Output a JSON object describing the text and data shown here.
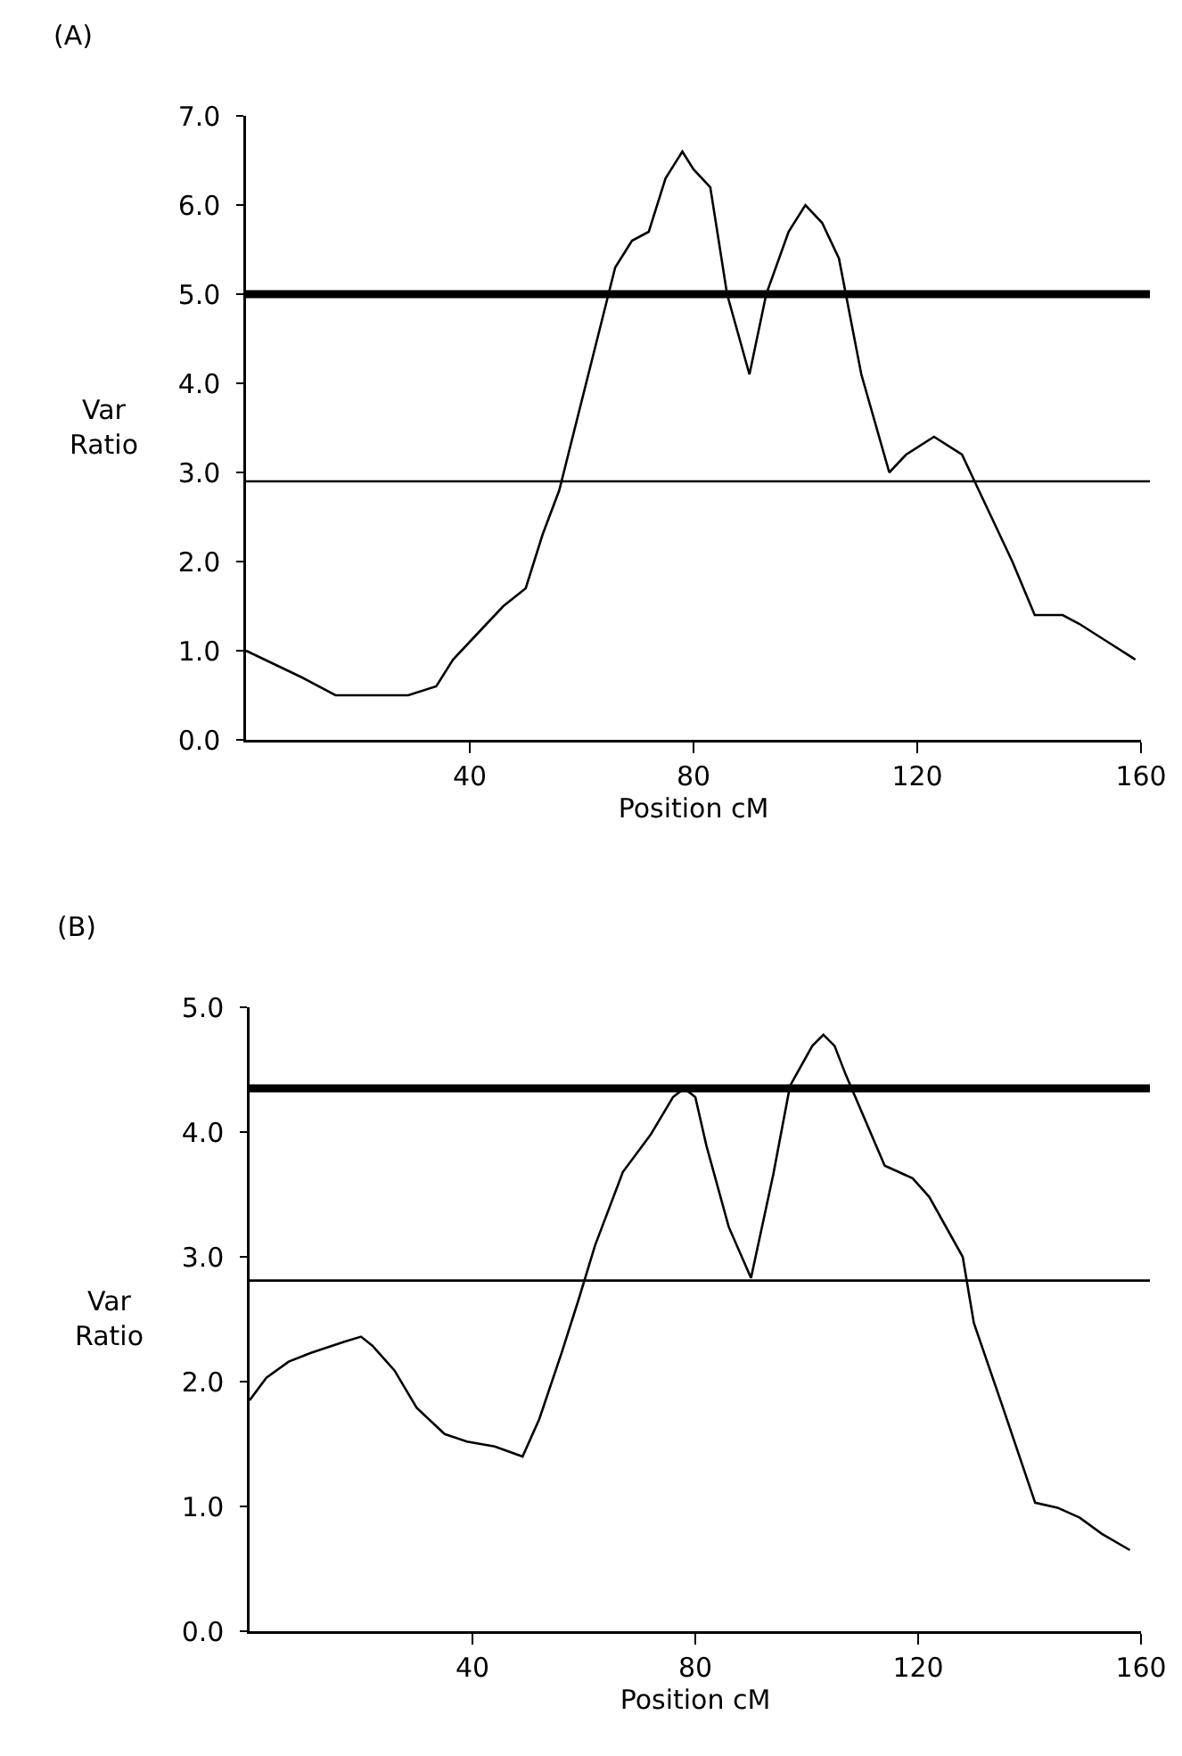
{
  "chart_data": [
    {
      "type": "line",
      "annotations": [
        "(A)"
      ],
      "xlabel": "Position cM",
      "ylabel": "Var Ratio",
      "x": [
        0,
        10,
        16,
        22,
        29,
        34,
        37,
        43,
        46,
        50,
        53,
        56,
        62,
        66,
        69,
        72,
        75,
        78,
        80,
        83,
        86,
        90,
        93,
        97,
        100,
        103,
        106,
        110,
        115,
        118,
        123,
        128,
        131,
        137,
        141,
        146,
        149,
        154,
        159
      ],
      "values": [
        1.0,
        0.7,
        0.5,
        0.5,
        0.5,
        0.6,
        0.9,
        1.3,
        1.5,
        1.7,
        2.3,
        2.8,
        4.3,
        5.3,
        5.6,
        5.7,
        6.3,
        6.6,
        6.4,
        6.2,
        5.0,
        4.1,
        5.0,
        5.7,
        6.0,
        5.8,
        5.4,
        4.1,
        3.0,
        3.2,
        3.4,
        3.2,
        2.8,
        2.0,
        1.4,
        1.4,
        1.3,
        1.1,
        0.9
      ],
      "color": "#000000",
      "xlim": [
        0,
        160
      ],
      "ylim": [
        0,
        7
      ],
      "xticks": [
        40,
        80,
        120,
        160
      ],
      "yticks": [
        {
          "value": 0,
          "label": "0.0"
        },
        {
          "value": 1,
          "label": "1.0"
        },
        {
          "value": 2,
          "label": "2.0"
        },
        {
          "value": 3,
          "label": "3.0"
        },
        {
          "value": 4,
          "label": "4.0"
        },
        {
          "value": 5,
          "label": "5.0"
        },
        {
          "value": 6,
          "label": "6.0"
        },
        {
          "value": 7,
          "label": "7.0"
        }
      ],
      "ref_lines": [
        {
          "axis": "y",
          "value": 5.0,
          "color": "#000000"
        },
        {
          "axis": "y",
          "value": 2.9,
          "color": "#000000"
        }
      ],
      "grid": false,
      "marker": "none",
      "line_style": "solid"
    },
    {
      "type": "line",
      "annotations": [
        "(B)"
      ],
      "xlabel": "Position cM",
      "ylabel": "Var Ratio",
      "x": [
        0,
        3,
        7,
        11,
        17,
        20,
        22,
        26,
        30,
        35,
        39,
        44,
        49,
        52,
        56,
        59,
        62,
        67,
        72,
        76,
        78,
        80,
        82,
        86,
        90,
        94,
        97,
        101,
        103,
        105,
        107,
        114,
        119,
        122,
        128,
        130,
        135,
        141,
        145,
        149,
        153,
        158
      ],
      "values": [
        1.85,
        2.03,
        2.16,
        2.23,
        2.32,
        2.36,
        2.29,
        2.09,
        1.79,
        1.58,
        1.52,
        1.48,
        1.4,
        1.7,
        2.23,
        2.65,
        3.09,
        3.68,
        3.98,
        4.28,
        4.35,
        4.28,
        3.89,
        3.24,
        2.83,
        3.66,
        4.37,
        4.69,
        4.78,
        4.69,
        4.46,
        3.73,
        3.63,
        3.48,
        3.0,
        2.47,
        1.82,
        1.03,
        0.99,
        0.91,
        0.78,
        0.65
      ],
      "color": "#000000",
      "xlim": [
        0,
        160
      ],
      "ylim": [
        0,
        5
      ],
      "xticks": [
        40,
        80,
        120,
        160
      ],
      "yticks": [
        {
          "value": 0,
          "label": "0.0"
        },
        {
          "value": 1,
          "label": "1.0"
        },
        {
          "value": 2,
          "label": "2.0"
        },
        {
          "value": 3,
          "label": "3.0"
        },
        {
          "value": 4,
          "label": "4.0"
        },
        {
          "value": 5,
          "label": "5.0"
        }
      ],
      "ref_lines": [
        {
          "axis": "y",
          "value": 4.35,
          "color": "#000000"
        },
        {
          "axis": "y",
          "value": 2.81,
          "color": "#000000"
        }
      ],
      "grid": false,
      "marker": "none",
      "line_style": "solid"
    }
  ]
}
